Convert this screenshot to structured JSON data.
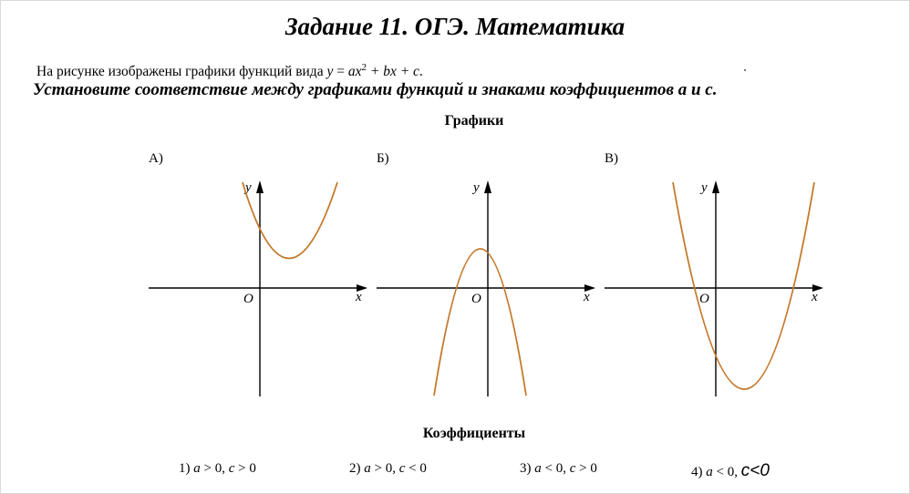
{
  "title": "Задание 11. ОГЭ. Математика",
  "intro": {
    "text": "На рисунке изображены графики функций вида",
    "formula_y": "y",
    "formula_eq": " = ",
    "formula_ax": "ax",
    "formula_sup": "2",
    "formula_rest": " + bx + c",
    "period": "."
  },
  "instruction": "Установите соответствие между графиками функций и знаками коэффициентов a и c.",
  "graphs_heading": "Графики",
  "graphs": [
    {
      "label": "А)",
      "y_letter": "y",
      "x_letter": "x",
      "origin_letter": "O"
    },
    {
      "label": "Б)",
      "y_letter": "y",
      "x_letter": "x",
      "origin_letter": "O"
    },
    {
      "label": "В)",
      "y_letter": "y",
      "x_letter": "x",
      "origin_letter": "O"
    }
  ],
  "curve_color": "#c47a2c",
  "coefficients_heading": "Коэффициенты",
  "coefficients": [
    {
      "num": "1)",
      "a": "a",
      "a_cond": " > 0, ",
      "c": "c",
      "c_cond": " > 0"
    },
    {
      "num": "2)",
      "a": "a",
      "a_cond": " > 0, ",
      "c": "c",
      "c_cond": " < 0"
    },
    {
      "num": "3)",
      "a": "a",
      "a_cond": " < 0, ",
      "c": "c",
      "c_cond": " > 0"
    },
    {
      "num": "4)",
      "a": "a",
      "a_cond": " < 0, ",
      "c_last": "c<0"
    }
  ]
}
